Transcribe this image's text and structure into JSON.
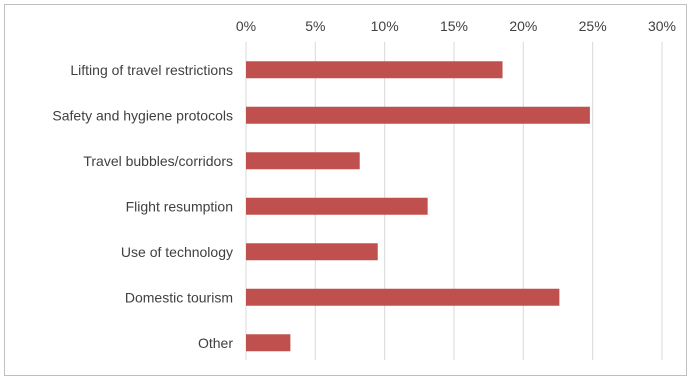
{
  "chart_data": {
    "type": "bar",
    "orientation": "horizontal",
    "categories": [
      "Lifting of travel restrictions",
      "Safety and hygiene protocols",
      "Travel bubbles/corridors",
      "Flight resumption",
      "Use of technology",
      "Domestic tourism",
      "Other"
    ],
    "values": [
      18.5,
      24.8,
      8.2,
      13.1,
      9.5,
      22.6,
      3.2
    ],
    "value_unit": "%",
    "xlim": [
      0,
      30
    ],
    "x_ticks": [
      "0%",
      "5%",
      "10%",
      "15%",
      "20%",
      "25%",
      "30%"
    ],
    "x_tick_values": [
      0,
      5,
      10,
      15,
      20,
      25,
      30
    ],
    "x_axis_position": "top",
    "grid": true,
    "legend": "none",
    "title": "",
    "xlabel": "",
    "ylabel": "",
    "colors": {
      "bar": "#c0504d",
      "grid": "#d9d9d9",
      "text": "#404040",
      "border": "#bfbfbf"
    }
  }
}
